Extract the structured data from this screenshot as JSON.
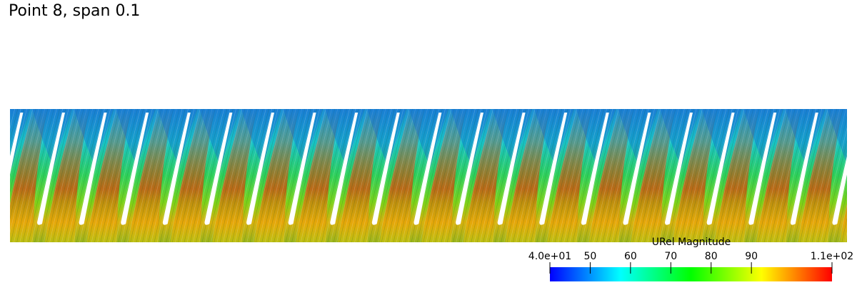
{
  "title": "Point 8, span 0.1",
  "colorbar": {
    "title": "URel Magnitude",
    "range": [
      40,
      110
    ],
    "ticks": [
      {
        "value": 40,
        "label": "4.0e+01"
      },
      50,
      60,
      70,
      80,
      90,
      {
        "value": 110,
        "label": "1.1e+02"
      }
    ],
    "colors": [
      "#0000ff",
      "#00ffff",
      "#00ff00",
      "#ffff00",
      "#ff0000"
    ]
  }
}
